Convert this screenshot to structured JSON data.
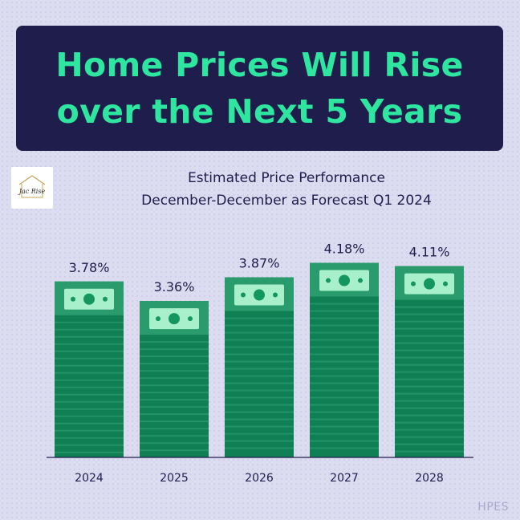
{
  "header": {
    "title_line1": "Home Prices Will Rise",
    "title_line2": "over the Next 5 Years"
  },
  "logo": {
    "text": "Jac Rise",
    "icon": "house-logo-icon"
  },
  "source_label": "HPES",
  "colors": {
    "background": "#dcdcf1",
    "banner": "#1f1d4b",
    "title": "#2ee6a0",
    "bar": "#108054",
    "bar_stripe": "#2a9b6c",
    "bill": "#a8f0cc",
    "bill_dark": "#149660"
  },
  "chart_data": {
    "type": "bar",
    "title": "Estimated Price Performance",
    "subtitle": "December-December as Forecast Q1 2024",
    "categories": [
      "2024",
      "2025",
      "2026",
      "2027",
      "2028"
    ],
    "values": [
      3.78,
      3.36,
      3.87,
      4.18,
      4.11
    ],
    "value_labels": [
      "3.78%",
      "3.36%",
      "3.87%",
      "4.18%",
      "4.11%"
    ],
    "grid": false,
    "legend": "none"
  }
}
